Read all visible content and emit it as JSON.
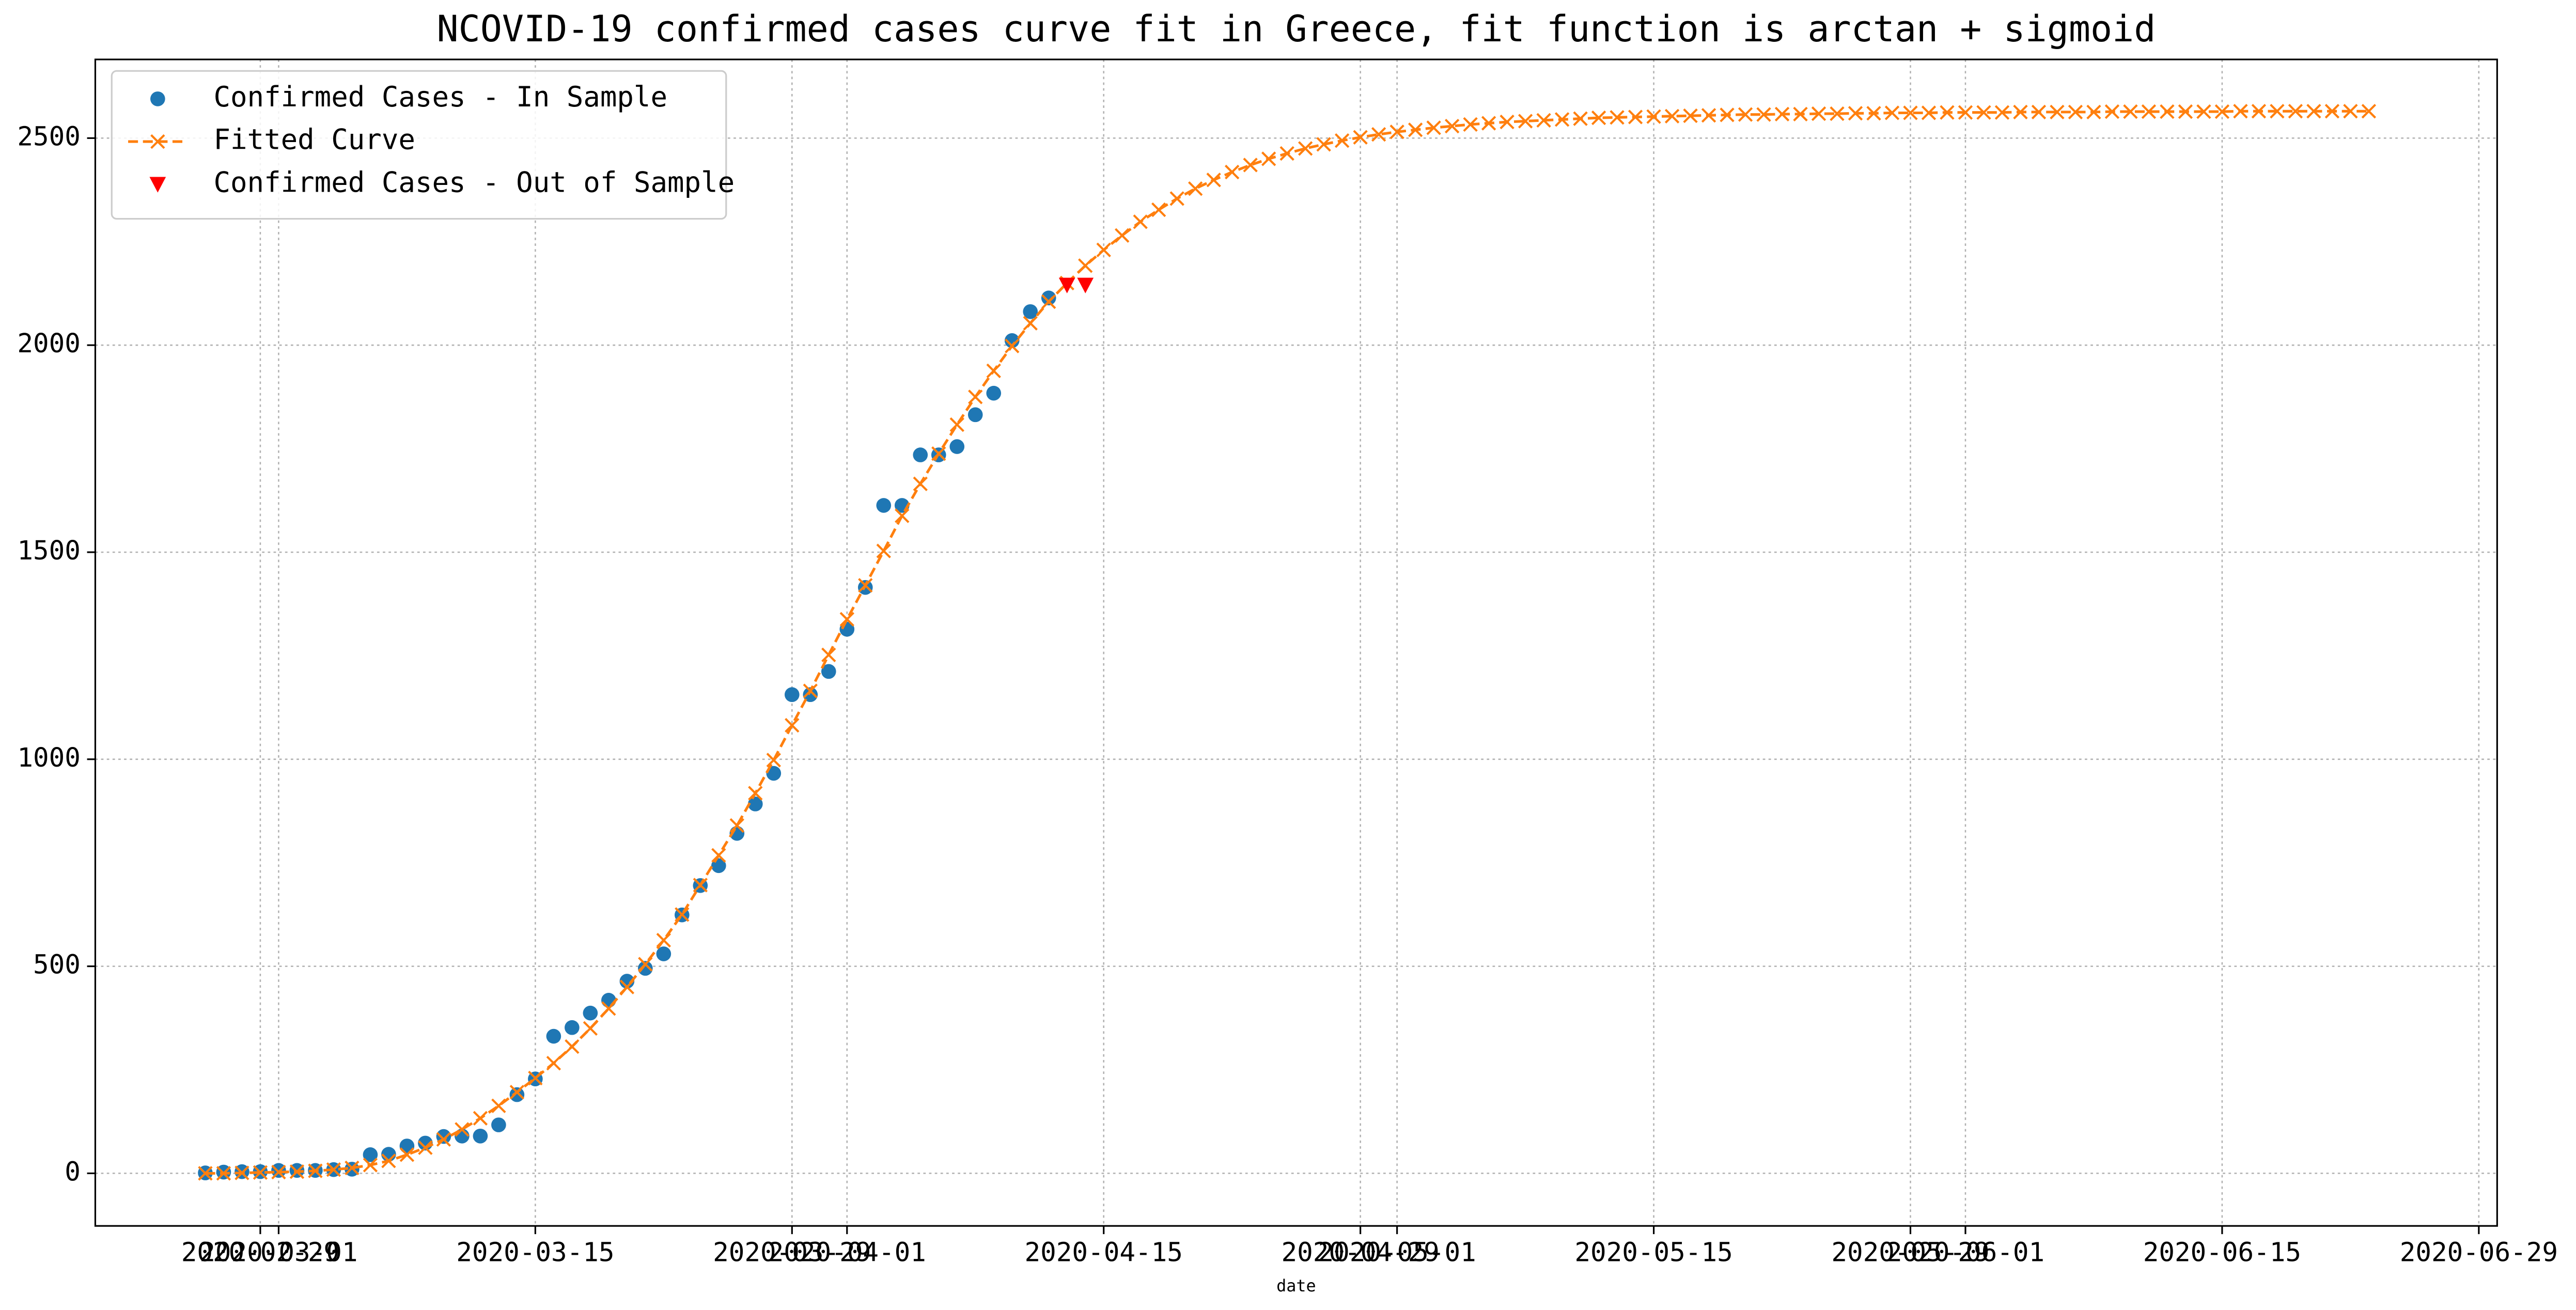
{
  "chart_data": {
    "type": "line",
    "title": "NCOVID-19 confirmed cases curve fit in Greece, fit function is arctan + sigmoid",
    "x_label": "date",
    "grid": true,
    "legend": "upper left",
    "xlim": [
      "2020-02-20",
      "2020-06-30"
    ],
    "xticks": [
      "2020-02-29",
      "2020-03-01",
      "2020-03-15",
      "2020-03-29",
      "2020-04-01",
      "2020-04-15",
      "2020-04-29",
      "2020-05-01",
      "2020-05-15",
      "2020-05-29",
      "2020-06-01",
      "2020-06-15",
      "2020-06-29"
    ],
    "ylim": [
      -127,
      2690
    ],
    "yticks": [
      0,
      500,
      1000,
      1500,
      2000,
      2500
    ],
    "series": [
      {
        "name": "Confirmed Cases - In Sample",
        "color": "#1f77b4",
        "marker": "o",
        "linestyle": "none",
        "x": [
          "2020-02-26",
          "2020-02-27",
          "2020-02-28",
          "2020-02-29",
          "2020-03-01",
          "2020-03-02",
          "2020-03-03",
          "2020-03-04",
          "2020-03-05",
          "2020-03-06",
          "2020-03-07",
          "2020-03-08",
          "2020-03-09",
          "2020-03-10",
          "2020-03-11",
          "2020-03-12",
          "2020-03-13",
          "2020-03-14",
          "2020-03-15",
          "2020-03-16",
          "2020-03-17",
          "2020-03-18",
          "2020-03-19",
          "2020-03-20",
          "2020-03-21",
          "2020-03-22",
          "2020-03-23",
          "2020-03-24",
          "2020-03-25",
          "2020-03-26",
          "2020-03-27",
          "2020-03-28",
          "2020-03-29",
          "2020-03-30",
          "2020-03-31",
          "2020-04-01",
          "2020-04-02",
          "2020-04-03",
          "2020-04-04",
          "2020-04-05",
          "2020-04-06",
          "2020-04-07",
          "2020-04-08",
          "2020-04-09",
          "2020-04-10",
          "2020-04-11",
          "2020-04-12"
        ],
        "values": [
          1,
          3,
          4,
          4,
          7,
          7,
          7,
          9,
          10,
          45,
          46,
          66,
          73,
          89,
          90,
          90,
          117,
          190,
          228,
          331,
          352,
          387,
          418,
          464,
          495,
          530,
          624,
          695,
          743,
          821,
          892,
          966,
          1156,
          1156,
          1212,
          1314,
          1415,
          1613,
          1613,
          1735,
          1735,
          1755,
          1832,
          1884,
          2011,
          2081,
          2114
        ]
      },
      {
        "name": "Fitted Curve",
        "color": "#ff7f0e",
        "marker": "x",
        "linestyle": "dashed",
        "x": [
          "2020-02-26",
          "2020-02-27",
          "2020-02-28",
          "2020-02-29",
          "2020-03-01",
          "2020-03-02",
          "2020-03-03",
          "2020-03-04",
          "2020-03-05",
          "2020-03-06",
          "2020-03-07",
          "2020-03-08",
          "2020-03-09",
          "2020-03-10",
          "2020-03-11",
          "2020-03-12",
          "2020-03-13",
          "2020-03-14",
          "2020-03-15",
          "2020-03-16",
          "2020-03-17",
          "2020-03-18",
          "2020-03-19",
          "2020-03-20",
          "2020-03-21",
          "2020-03-22",
          "2020-03-23",
          "2020-03-24",
          "2020-03-25",
          "2020-03-26",
          "2020-03-27",
          "2020-03-28",
          "2020-03-29",
          "2020-03-30",
          "2020-03-31",
          "2020-04-01",
          "2020-04-02",
          "2020-04-03",
          "2020-04-04",
          "2020-04-05",
          "2020-04-06",
          "2020-04-07",
          "2020-04-08",
          "2020-04-09",
          "2020-04-10",
          "2020-04-11",
          "2020-04-12",
          "2020-04-13",
          "2020-04-14",
          "2020-04-15",
          "2020-04-16",
          "2020-04-17",
          "2020-04-18",
          "2020-04-19",
          "2020-04-20",
          "2020-04-21",
          "2020-04-22",
          "2020-04-23",
          "2020-04-24",
          "2020-04-25",
          "2020-04-26",
          "2020-04-27",
          "2020-04-28",
          "2020-04-29",
          "2020-04-30",
          "2020-05-01",
          "2020-05-02",
          "2020-05-03",
          "2020-05-04",
          "2020-05-05",
          "2020-05-06",
          "2020-05-07",
          "2020-05-08",
          "2020-05-09",
          "2020-05-10",
          "2020-05-11",
          "2020-05-12",
          "2020-05-13",
          "2020-05-14",
          "2020-05-15",
          "2020-05-16",
          "2020-05-17",
          "2020-05-18",
          "2020-05-19",
          "2020-05-20",
          "2020-05-21",
          "2020-05-22",
          "2020-05-23",
          "2020-05-24",
          "2020-05-25",
          "2020-05-26",
          "2020-05-27",
          "2020-05-28",
          "2020-05-29",
          "2020-05-30",
          "2020-05-31",
          "2020-06-01",
          "2020-06-02",
          "2020-06-03",
          "2020-06-04",
          "2020-06-05",
          "2020-06-06",
          "2020-06-07",
          "2020-06-08",
          "2020-06-09",
          "2020-06-10",
          "2020-06-11",
          "2020-06-12",
          "2020-06-13",
          "2020-06-14",
          "2020-06-15",
          "2020-06-16",
          "2020-06-17",
          "2020-06-18",
          "2020-06-19",
          "2020-06-20",
          "2020-06-21",
          "2020-06-22",
          "2020-06-23"
        ],
        "values": [
          0,
          0,
          1,
          2,
          3,
          4,
          6,
          9,
          13,
          20,
          30,
          45,
          62,
          82,
          106,
          133,
          163,
          196,
          230,
          266,
          306,
          350,
          398,
          450,
          505,
          563,
          625,
          696,
          768,
          840,
          918,
          998,
          1082,
          1165,
          1252,
          1338,
          1420,
          1503,
          1588,
          1665,
          1738,
          1808,
          1875,
          1938,
          1998,
          2053,
          2105,
          2150,
          2192,
          2230,
          2265,
          2298,
          2327,
          2354,
          2378,
          2399,
          2418,
          2435,
          2450,
          2463,
          2475,
          2485,
          2494,
          2502,
          2509,
          2515,
          2520,
          2525,
          2529,
          2533,
          2536,
          2539,
          2541,
          2543,
          2545,
          2547,
          2549,
          2550,
          2551,
          2552,
          2553,
          2554,
          2555,
          2556,
          2557,
          2557,
          2558,
          2558,
          2559,
          2559,
          2560,
          2560,
          2561,
          2561,
          2561,
          2562,
          2562,
          2562,
          2562,
          2563,
          2563,
          2563,
          2563,
          2563,
          2564,
          2564,
          2564,
          2564,
          2564,
          2564,
          2564,
          2565,
          2565,
          2565,
          2565,
          2565,
          2565,
          2565,
          2565
        ]
      },
      {
        "name": "Confirmed Cases - Out of Sample",
        "color": "#ff0000",
        "marker": "v",
        "linestyle": "none",
        "x": [
          "2020-04-13",
          "2020-04-14"
        ],
        "values": [
          2145,
          2145
        ]
      }
    ]
  }
}
